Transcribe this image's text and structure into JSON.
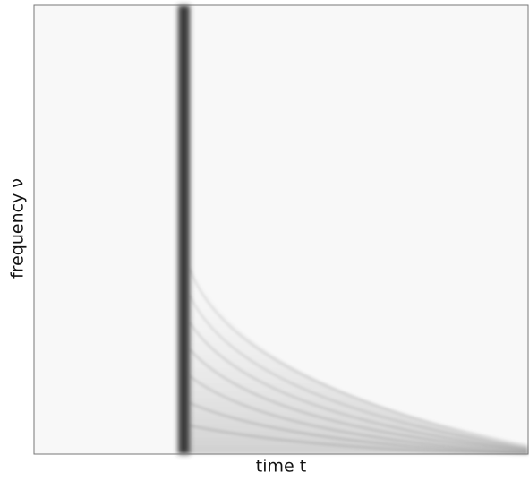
{
  "chart_data": {
    "type": "spectrogram",
    "xlabel": "time t",
    "ylabel": "frequency ν"
  }
}
